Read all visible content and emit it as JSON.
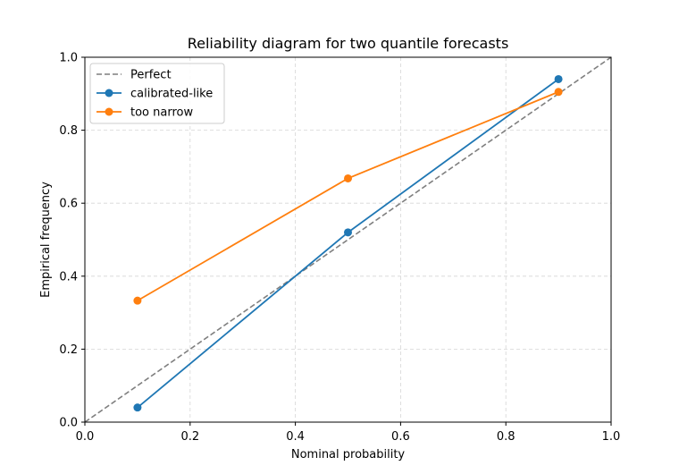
{
  "chart_data": {
    "type": "line",
    "title": "Reliability diagram for two quantile forecasts",
    "xlabel": "Nominal probability",
    "ylabel": "Empirical frequency",
    "xlim": [
      0.0,
      1.0
    ],
    "ylim": [
      0.0,
      1.0
    ],
    "xticks": [
      "0.0",
      "0.2",
      "0.4",
      "0.6",
      "0.8",
      "1.0"
    ],
    "yticks": [
      "0.0",
      "0.2",
      "0.4",
      "0.6",
      "0.8",
      "1.0"
    ],
    "grid": true,
    "legend_position": "top-left",
    "reference_line": {
      "name": "Perfect",
      "x": [
        0.0,
        1.0
      ],
      "y": [
        0.0,
        1.0
      ],
      "color": "#7f7f7f",
      "style": "dashed"
    },
    "series": [
      {
        "name": "calibrated-like",
        "x": [
          0.1,
          0.5,
          0.9
        ],
        "y": [
          0.04,
          0.52,
          0.94
        ],
        "color": "#1f77b4"
      },
      {
        "name": "too narrow",
        "x": [
          0.1,
          0.5,
          0.9
        ],
        "y": [
          0.333,
          0.668,
          0.905
        ],
        "color": "#ff7f0e"
      }
    ]
  }
}
